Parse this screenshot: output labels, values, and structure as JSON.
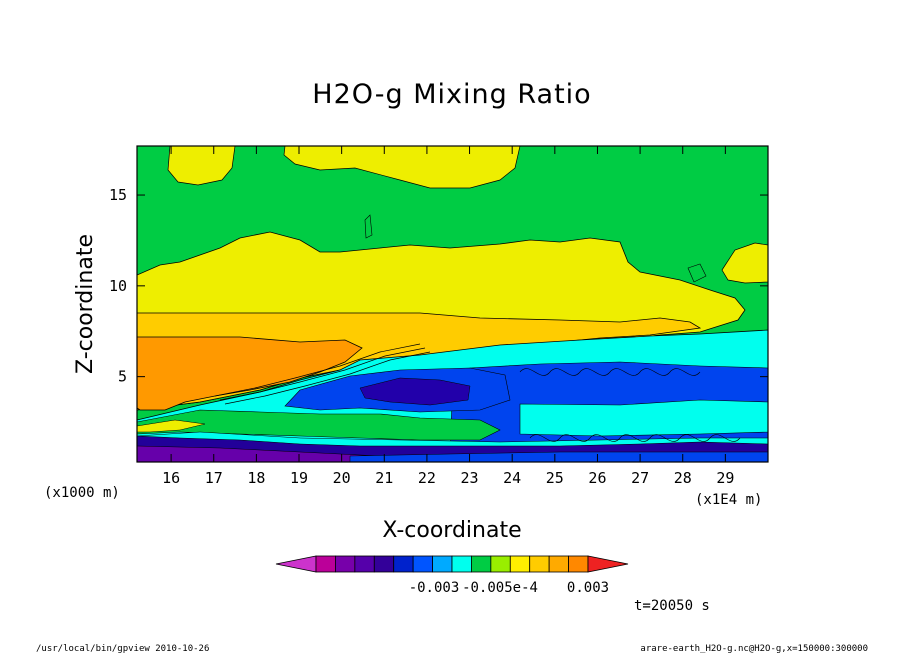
{
  "chart_data": {
    "type": "heatmap",
    "title": "H2O-g Mixing Ratio",
    "xlabel": "X-coordinate",
    "ylabel": "Z-coordinate",
    "x_unit_left": "(x1000 m)",
    "x_unit_right": "(x1E4 m)",
    "xlim": [
      15.2,
      30.0
    ],
    "ylim": [
      0.3,
      17.7
    ],
    "x_ticks": [
      "16",
      "17",
      "18",
      "19",
      "20",
      "21",
      "22",
      "23",
      "24",
      "25",
      "26",
      "27",
      "28",
      "29"
    ],
    "y_ticks": [
      "5",
      "10",
      "15"
    ],
    "colorbar": {
      "colors": [
        "#cc33cc",
        "#bb0099",
        "#7700aa",
        "#5500aa",
        "#330099",
        "#0022cc",
        "#0055ff",
        "#00aaff",
        "#00ffee",
        "#00cc44",
        "#99ee00",
        "#ffee00",
        "#ffcc00",
        "#ffaa00",
        "#ff8800",
        "#ee2222"
      ],
      "labels": [
        "-0.003",
        "-0.005e-4",
        "0.003"
      ]
    },
    "time_label": "t=20050 s",
    "footer_left": "/usr/local/bin/gpview  2010-10-26",
    "footer_right": "arare-earth_H2O-g.nc@H2O-g,x=150000:300000"
  }
}
